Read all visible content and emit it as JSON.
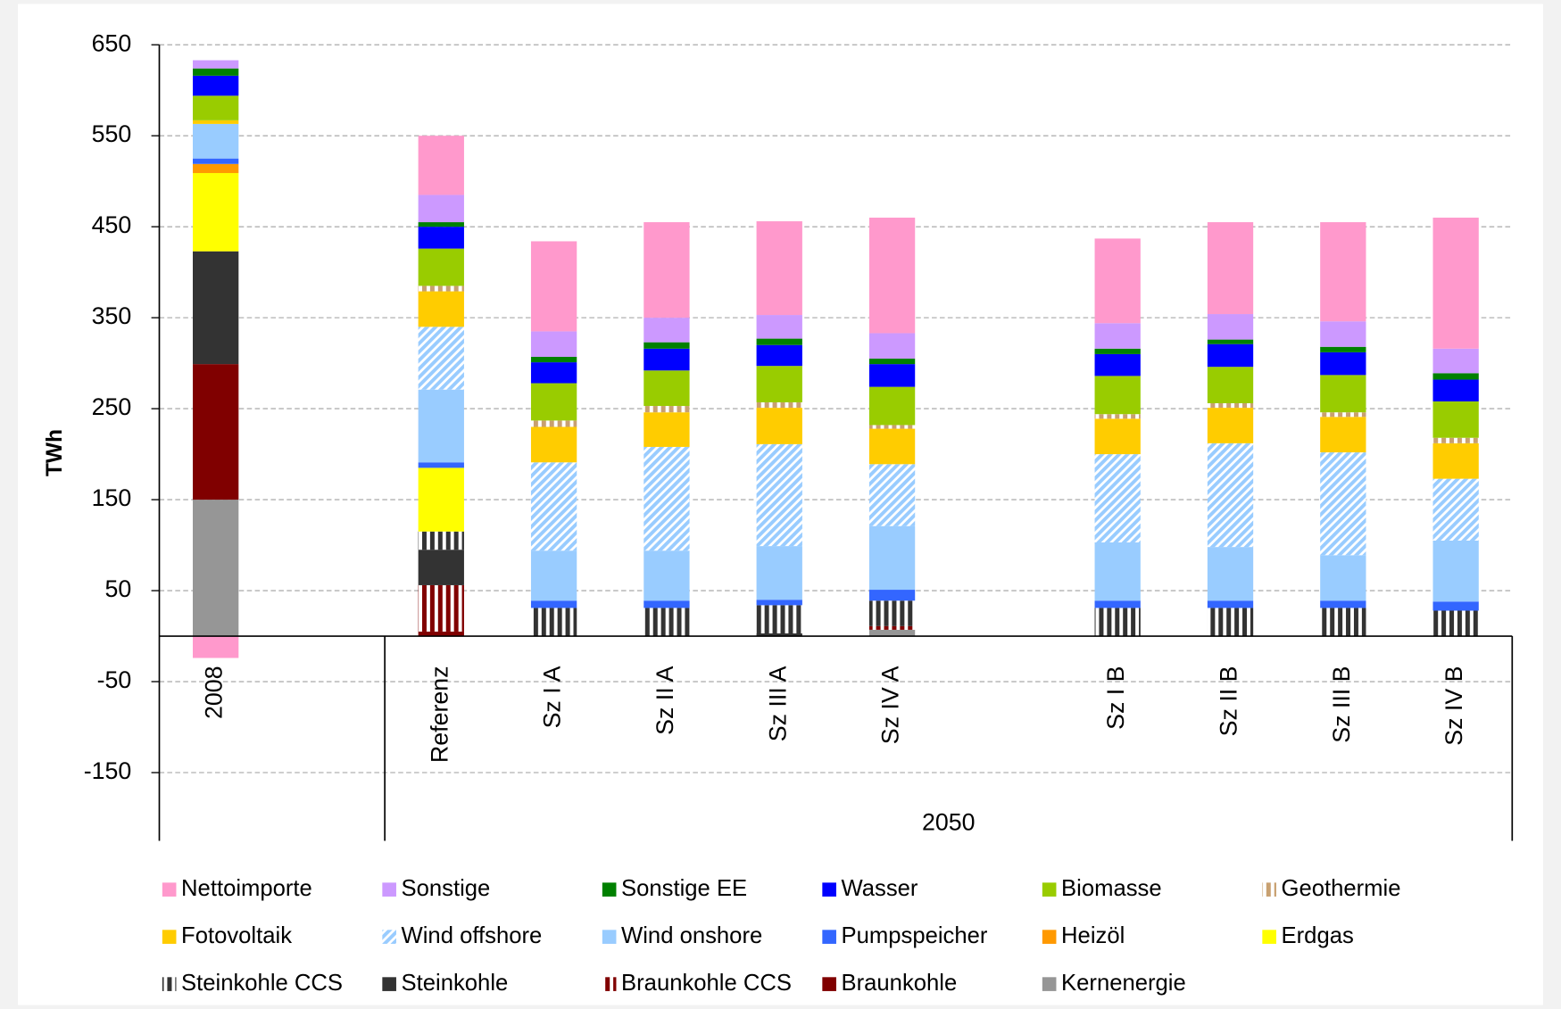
{
  "chart_data": {
    "type": "stacked_bar",
    "y_label": "TWh",
    "group_label": "2050",
    "categories": [
      "2008",
      null,
      "Referenz",
      "Sz I A",
      "Sz II A",
      "Sz III A",
      "Sz IV A",
      null,
      "Sz I B",
      "Sz II B",
      "Sz III B",
      "Sz IV B"
    ],
    "ylim": [
      -225,
      650
    ],
    "yticks": [
      650,
      550,
      450,
      350,
      250,
      150,
      50,
      -50,
      -150
    ],
    "grid": true,
    "legend": "bottom",
    "series": [
      {
        "name": "Nettoimporte",
        "color": "#ff99cc",
        "values": [
          -24,
          null,
          65,
          99,
          105,
          103,
          127,
          null,
          93,
          101,
          109,
          144
        ]
      },
      {
        "name": "Sonstige",
        "color": "#cc99ff",
        "values": [
          9,
          null,
          30,
          28,
          27,
          26,
          28,
          null,
          28,
          28,
          28,
          27
        ]
      },
      {
        "name": "Sonstige EE",
        "color": "#008000",
        "values": [
          8,
          null,
          5,
          6,
          7,
          7,
          6,
          null,
          6,
          5,
          6,
          7
        ]
      },
      {
        "name": "Wasser",
        "color": "#0000ff",
        "values": [
          22,
          null,
          24,
          23,
          24,
          23,
          25,
          null,
          24,
          25,
          25,
          24
        ]
      },
      {
        "name": "Biomasse",
        "color": "#99cc00",
        "values": [
          27,
          null,
          41,
          41,
          39,
          40,
          42,
          null,
          42,
          40,
          41,
          40
        ]
      },
      {
        "name": "Geothermie",
        "color": "#c8a070",
        "pattern": "stripes",
        "values": [
          0,
          null,
          6,
          7,
          7,
          6,
          4,
          null,
          5,
          5,
          5,
          6
        ]
      },
      {
        "name": "Fotovoltaik",
        "color": "#ffcc00",
        "values": [
          4,
          null,
          39,
          39,
          38,
          40,
          39,
          null,
          39,
          39,
          39,
          39
        ]
      },
      {
        "name": "Wind offshore",
        "color": "#99ccff",
        "pattern": "hatch",
        "values": [
          0,
          null,
          69,
          97,
          114,
          112,
          68,
          null,
          97,
          114,
          113,
          68
        ]
      },
      {
        "name": "Wind onshore",
        "color": "#99ccff",
        "values": [
          38,
          null,
          80,
          55,
          55,
          59,
          70,
          null,
          64,
          59,
          50,
          67
        ]
      },
      {
        "name": "Pumpspeicher",
        "color": "#3366ff",
        "values": [
          6,
          null,
          6,
          8,
          8,
          6,
          12,
          null,
          8,
          8,
          8,
          10
        ]
      },
      {
        "name": "Heizöl",
        "color": "#ff9900",
        "values": [
          10,
          null,
          0,
          0,
          0,
          0,
          0,
          null,
          0,
          0,
          0,
          0
        ]
      },
      {
        "name": "Erdgas",
        "color": "#ffff00",
        "values": [
          86,
          null,
          70,
          0,
          0,
          0,
          0,
          null,
          0,
          0,
          0,
          0
        ]
      },
      {
        "name": "Steinkohle CCS",
        "color": "#333333",
        "pattern": "stripes",
        "values": [
          0,
          null,
          20,
          31,
          31,
          31,
          28,
          null,
          31,
          31,
          31,
          28
        ]
      },
      {
        "name": "Steinkohle",
        "color": "#333333",
        "values": [
          124,
          null,
          39,
          0,
          0,
          3,
          0,
          null,
          0,
          0,
          0,
          0
        ]
      },
      {
        "name": "Braunkohle CCS",
        "color": "#800000",
        "pattern": "stripes",
        "values": [
          0,
          null,
          51,
          0,
          0,
          0,
          4,
          null,
          0,
          0,
          0,
          0
        ]
      },
      {
        "name": "Braunkohle",
        "color": "#800000",
        "values": [
          149,
          null,
          5,
          0,
          0,
          0,
          0,
          null,
          0,
          0,
          0,
          0
        ]
      },
      {
        "name": "Kernenergie",
        "color": "#969696",
        "values": [
          150,
          null,
          0,
          0,
          0,
          0,
          7,
          null,
          0,
          0,
          0,
          0
        ]
      }
    ]
  }
}
